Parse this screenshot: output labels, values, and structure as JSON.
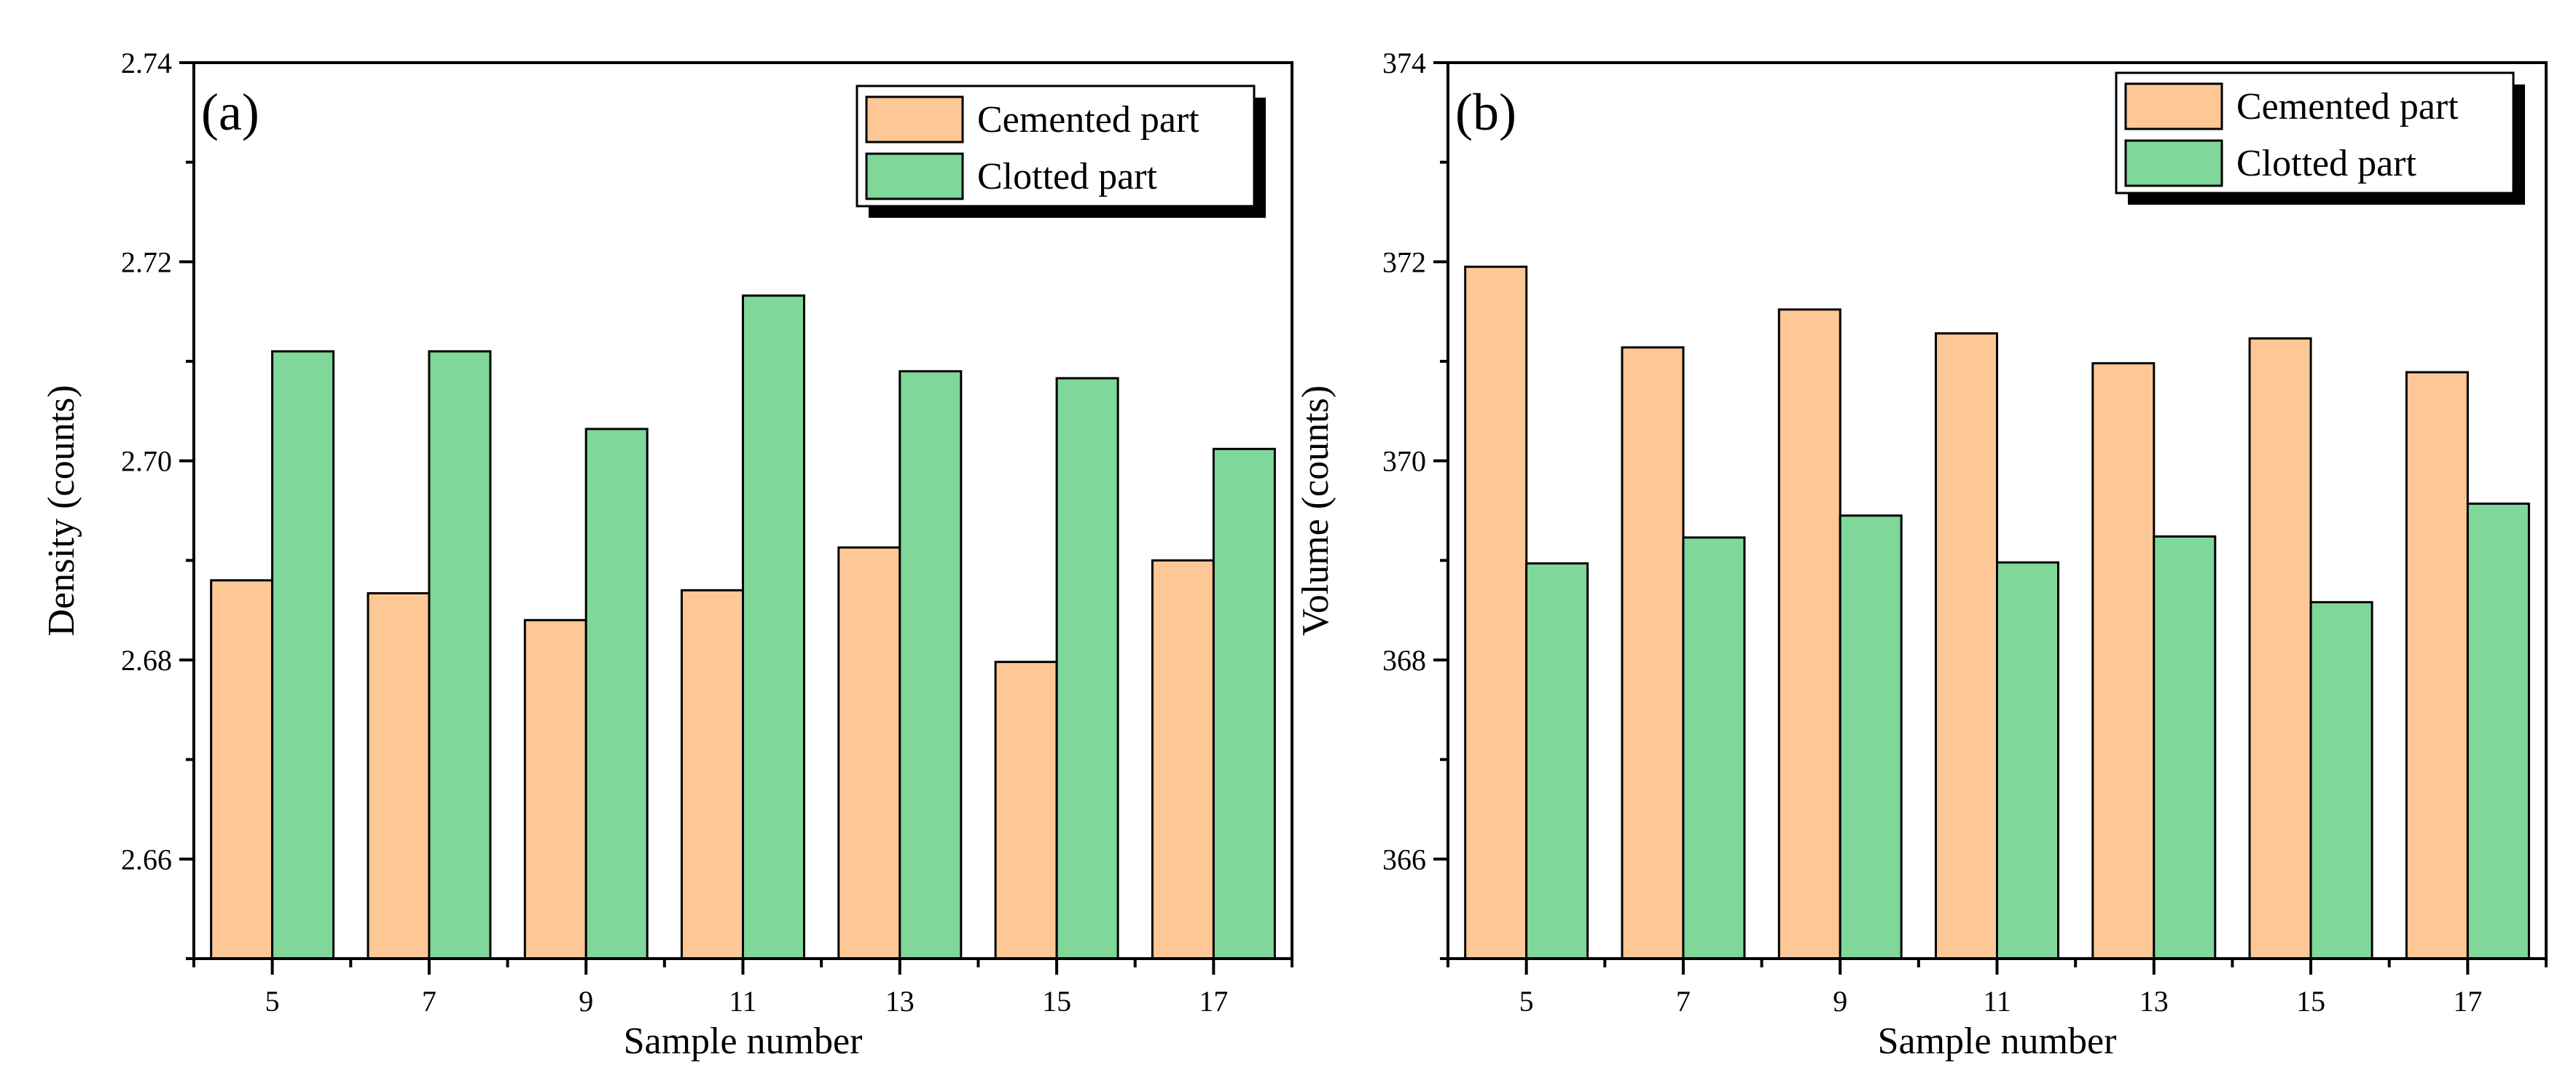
{
  "colors": {
    "cemented": "#FDC896",
    "clotted": "#7FD799",
    "axis": "#000000"
  },
  "chart_data": [
    {
      "panel_label": "(a)",
      "type": "bar",
      "xlabel": "Sample number",
      "ylabel": "Density (counts)",
      "categories": [
        "5",
        "7",
        "9",
        "11",
        "13",
        "15",
        "17"
      ],
      "ylim": [
        2.65,
        2.74
      ],
      "yticks": [
        "2.66",
        "2.68",
        "2.70",
        "2.72",
        "2.74"
      ],
      "legend_position": "top-right",
      "series": [
        {
          "name": "Cemented part",
          "color": "#FDC896",
          "values": [
            2.688,
            2.6867,
            2.684,
            2.687,
            2.6913,
            2.6798,
            2.69
          ]
        },
        {
          "name": "Clotted part",
          "color": "#7FD799",
          "values": [
            2.711,
            2.711,
            2.7032,
            2.7166,
            2.709,
            2.7083,
            2.7012
          ]
        }
      ]
    },
    {
      "panel_label": "(b)",
      "type": "bar",
      "xlabel": "Sample number",
      "ylabel": "Volume (counts)",
      "categories": [
        "5",
        "7",
        "9",
        "11",
        "13",
        "15",
        "17"
      ],
      "ylim": [
        365,
        374
      ],
      "yticks": [
        "366",
        "368",
        "370",
        "372",
        "374"
      ],
      "legend_position": "top-right",
      "series": [
        {
          "name": "Cemented part",
          "color": "#FDC896",
          "values": [
            371.95,
            371.14,
            371.52,
            371.28,
            370.98,
            371.23,
            370.89
          ]
        },
        {
          "name": "Clotted part",
          "color": "#7FD799",
          "values": [
            368.97,
            369.23,
            369.45,
            368.98,
            369.24,
            368.58,
            369.57
          ]
        }
      ]
    }
  ]
}
